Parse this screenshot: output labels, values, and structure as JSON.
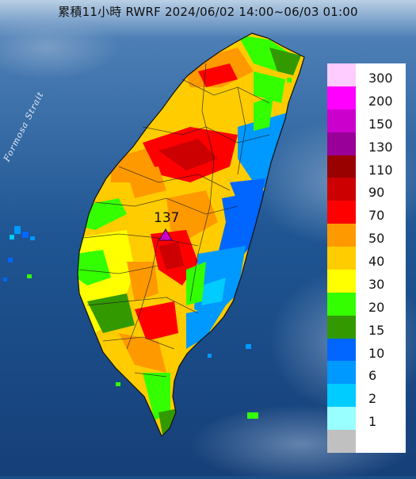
{
  "title": "累積11小時 RWRF 2024/06/02 14:00~06/03 01:00",
  "strait_label": "Formosa Strait",
  "peak": {
    "value": "137"
  },
  "legend": [
    {
      "label": "300",
      "color": "#ffccff"
    },
    {
      "label": "200",
      "color": "#ff00ff"
    },
    {
      "label": "150",
      "color": "#cc00cc"
    },
    {
      "label": "130",
      "color": "#990099"
    },
    {
      "label": "110",
      "color": "#990000"
    },
    {
      "label": "90",
      "color": "#cc0000"
    },
    {
      "label": "70",
      "color": "#ff0000"
    },
    {
      "label": "50",
      "color": "#ff9900"
    },
    {
      "label": "40",
      "color": "#ffcc00"
    },
    {
      "label": "30",
      "color": "#ffff00"
    },
    {
      "label": "20",
      "color": "#33ff00"
    },
    {
      "label": "15",
      "color": "#339900"
    },
    {
      "label": "10",
      "color": "#0066ff"
    },
    {
      "label": "6",
      "color": "#0099ff"
    },
    {
      "label": "2",
      "color": "#00ccff"
    },
    {
      "label": "1",
      "color": "#99ffff"
    },
    {
      "label": "",
      "color": "#c0c0c0"
    }
  ],
  "colors": {
    "sea": "#1b4d86",
    "title_band": "#c8d9ea",
    "marker": "#cc00cc",
    "county_lines": "#1a1a1a"
  }
}
